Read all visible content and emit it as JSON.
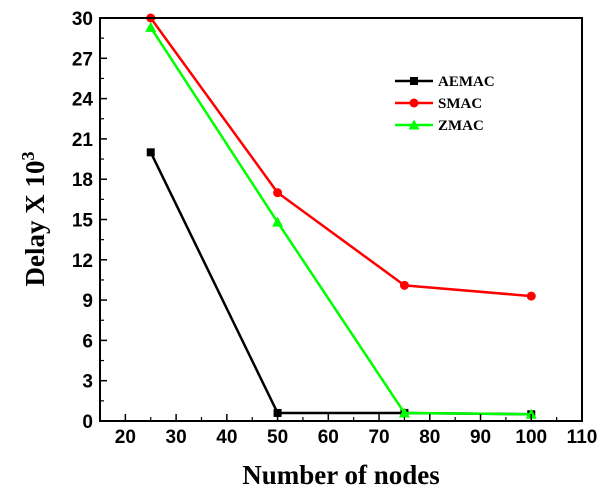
{
  "chart_data": {
    "type": "line",
    "title": "",
    "xlabel": "Number of nodes",
    "ylabel_main": "Delay X 10",
    "ylabel_exp": "3",
    "xlim": [
      15,
      110
    ],
    "ylim": [
      0,
      30
    ],
    "xticks": [
      "20",
      "30",
      "40",
      "50",
      "60",
      "70",
      "80",
      "90",
      "100",
      "110"
    ],
    "yticks": [
      "0",
      "3",
      "6",
      "9",
      "12",
      "15",
      "18",
      "21",
      "24",
      "27",
      "30"
    ],
    "grid": false,
    "legend_position": "top-right",
    "series": [
      {
        "name": "AEMAC",
        "color": "#000000",
        "marker": "square",
        "x": [
          25,
          50,
          75,
          100
        ],
        "y": [
          20,
          0.6,
          0.6,
          0.5
        ]
      },
      {
        "name": "SMAC",
        "color": "#ff0000",
        "marker": "circle",
        "x": [
          25,
          50,
          75,
          100
        ],
        "y": [
          30,
          17,
          10.1,
          9.3
        ]
      },
      {
        "name": "ZMAC",
        "color": "#00ff00",
        "marker": "triangle",
        "x": [
          25,
          50,
          75,
          100
        ],
        "y": [
          29.3,
          14.8,
          0.6,
          0.5
        ]
      }
    ]
  }
}
